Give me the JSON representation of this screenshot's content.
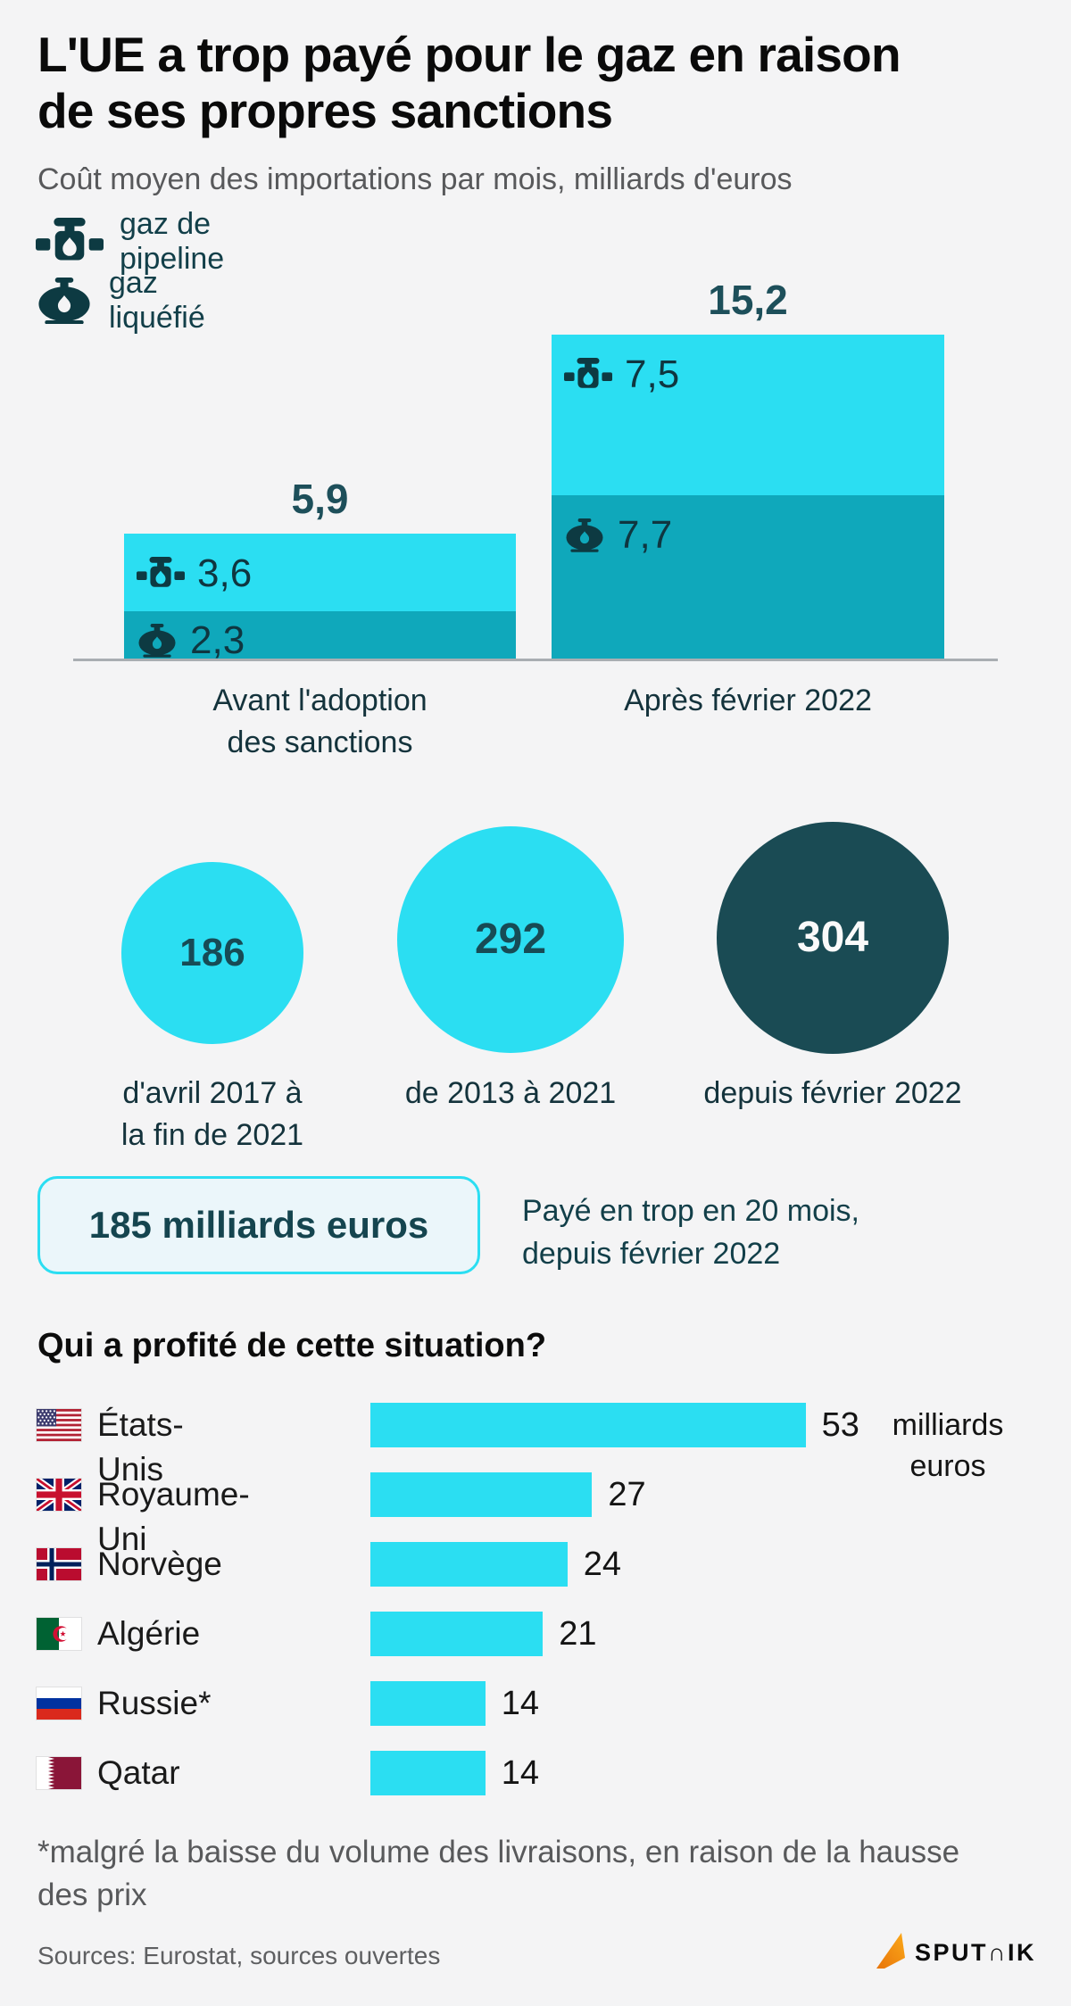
{
  "title": {
    "line1": "L'UE a trop payé pour le gaz en raison",
    "line2": "de ses propres sanctions"
  },
  "subtitle": "Coût moyen des importations par mois, milliards d'euros",
  "legend": [
    {
      "icon": "pipeline-gas-icon",
      "label": "gaz de pipeline"
    },
    {
      "icon": "liquefied-gas-icon",
      "label": "gaz liquéfié"
    }
  ],
  "chart_data": [
    {
      "id": "monthly-import-cost",
      "type": "bar",
      "stacked": true,
      "title": "Coût moyen des importations par mois, milliards d'euros",
      "categories": [
        "Avant l'adoption des sanctions",
        "Après février 2022"
      ],
      "category_lines": [
        [
          "Avant l'adoption",
          "des sanctions"
        ],
        [
          "Après février 2022"
        ]
      ],
      "series": [
        {
          "name": "gaz de pipeline",
          "values": [
            3.6,
            7.5
          ],
          "labels": [
            "3,6",
            "7,5"
          ],
          "color": "#2bdef2"
        },
        {
          "name": "gaz liquéfié",
          "values": [
            2.3,
            7.7
          ],
          "labels": [
            "2,3",
            "7,7"
          ],
          "color": "#0fa8bb"
        }
      ],
      "totals": [
        5.9,
        15.2
      ],
      "total_labels": [
        "5,9",
        "15,2"
      ],
      "unit": "milliards d'euros",
      "legend_position": "top-left",
      "grid": false
    },
    {
      "id": "overpayment-periods",
      "type": "bubble",
      "values": [
        186,
        292,
        304
      ],
      "value_labels": [
        "186",
        "292",
        "304"
      ],
      "category_lines": [
        [
          "d'avril 2017 à",
          "la fin de 2021"
        ],
        [
          "de 2013 à 2021"
        ],
        [
          "depuis février 2022"
        ]
      ],
      "styles": [
        "light",
        "light",
        "dark"
      ]
    },
    {
      "id": "beneficiaries",
      "type": "bar",
      "orientation": "horizontal",
      "title": "Qui a profité de cette situation?",
      "categories": [
        "États-Unis",
        "Royaume-Uni",
        "Norvège",
        "Algérie",
        "Russie*",
        "Qatar"
      ],
      "flags": [
        "us",
        "gb",
        "no",
        "dz",
        "ru",
        "qa"
      ],
      "values": [
        53,
        27,
        24,
        21,
        14,
        14
      ],
      "unit_lines": [
        "milliards",
        "euros"
      ],
      "grid": false
    }
  ],
  "highlight": {
    "amount": "185 milliards euros",
    "caption_lines": [
      "Payé en trop en 20 mois,",
      "depuis février 2022"
    ]
  },
  "footnote_lines": [
    "*malgré la baisse du volume des livraisons, en raison de la hausse",
    "des prix"
  ],
  "footer": {
    "sources": "Sources: Eurostat, sources ouvertes",
    "brand": "SPUTNIK",
    "brand_display": "SPUT∩IK"
  },
  "colors": {
    "cyan": "#2bdef2",
    "teal": "#0fa8bb",
    "dark_circle": "#1a4b54",
    "icon_dark": "#0d3a42",
    "text_dark": "#123f49",
    "total_label": "#1d4f5a",
    "background": "#f4f4f5",
    "box_fill": "#ebf6fa",
    "gray_text": "#58595b",
    "logo_orange": "#f7941d"
  }
}
